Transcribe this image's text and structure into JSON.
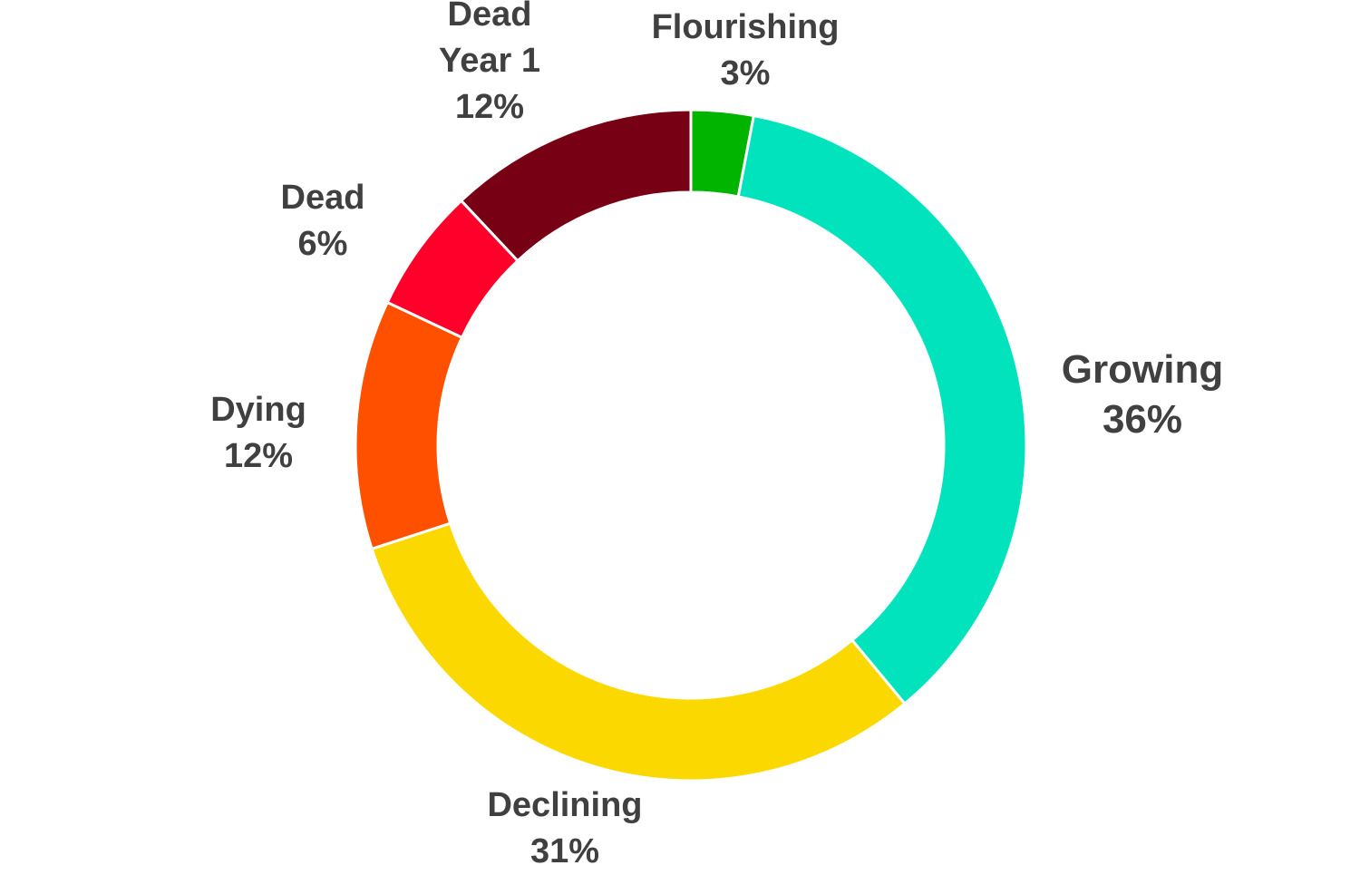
{
  "chart_data": {
    "type": "pie",
    "variant": "donut",
    "categories": [
      "Flourishing",
      "Growing",
      "Declining",
      "Dying",
      "Dead",
      "Dead Year 1"
    ],
    "values": [
      3,
      36,
      31,
      12,
      6,
      12
    ],
    "labels": [
      {
        "name": [
          "Flourishing"
        ],
        "pct": "3%"
      },
      {
        "name": [
          "Growing"
        ],
        "pct": "36%"
      },
      {
        "name": [
          "Declining"
        ],
        "pct": "31%"
      },
      {
        "name": [
          "Dying"
        ],
        "pct": "12%"
      },
      {
        "name": [
          "Dead"
        ],
        "pct": "6%"
      },
      {
        "name": [
          "Dead",
          "Year 1"
        ],
        "pct": "12%"
      }
    ],
    "colors": [
      "#00B400",
      "#00E3BC",
      "#FBD900",
      "#FF5000",
      "#FF002B",
      "#780014"
    ],
    "start_angle": "top, clockwise",
    "legend": "none"
  }
}
